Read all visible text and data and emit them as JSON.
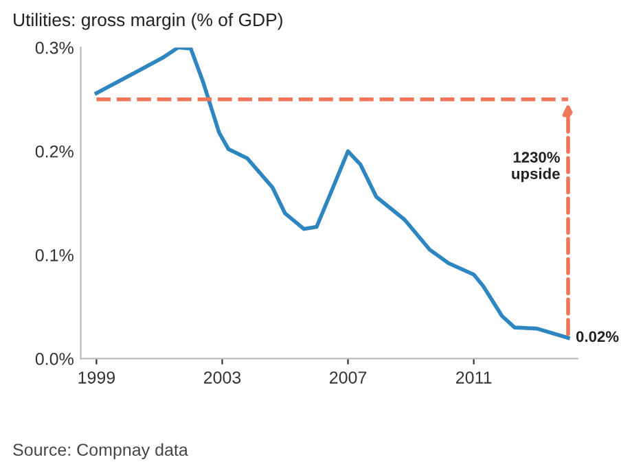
{
  "chart_data": {
    "type": "line",
    "title": "Utilities: gross margin (% of GDP)",
    "series": [
      {
        "color": "#2e86c1",
        "x": [
          1999,
          2000.3,
          2001.1,
          2001.6,
          2002.0,
          2002.4,
          2002.9,
          2003.2,
          2003.8,
          2004.6,
          2005.0,
          2005.6,
          2006.0,
          2006.4,
          2007.0,
          2007.4,
          2007.9,
          2008.8,
          2009.6,
          2010.2,
          2011.0,
          2011.3,
          2011.9,
          2012.3,
          2013.0,
          2014.0
        ],
        "values": [
          0.256,
          0.277,
          0.29,
          0.3,
          0.299,
          0.266,
          0.218,
          0.202,
          0.193,
          0.165,
          0.14,
          0.125,
          0.127,
          0.156,
          0.2,
          0.187,
          0.156,
          0.134,
          0.105,
          0.092,
          0.081,
          0.07,
          0.041,
          0.03,
          0.029,
          0.02
        ]
      }
    ],
    "xlim": [
      1998.5,
      2014.3
    ],
    "xticks": [
      1999,
      2003,
      2007,
      2011
    ],
    "ylim": [
      0,
      0.3
    ],
    "yticks": [
      {
        "value": 0,
        "label": "0.0%"
      },
      {
        "value": 0.1,
        "label": "0.1%"
      },
      {
        "value": 0.2,
        "label": "0.2%"
      },
      {
        "value": 0.3,
        "label": "0.3%"
      }
    ],
    "ref_lines": [
      {
        "axis": "y",
        "value": 0.25,
        "color": "#f0765a",
        "line_style": "dashed"
      }
    ],
    "annotations": [
      "1230%\nupside",
      {
        "text": "0.02%",
        "x": 2014,
        "y": 0.02
      },
      "Source: Compnay data"
    ],
    "grid": false,
    "marker": "none",
    "line_style": "solid"
  }
}
